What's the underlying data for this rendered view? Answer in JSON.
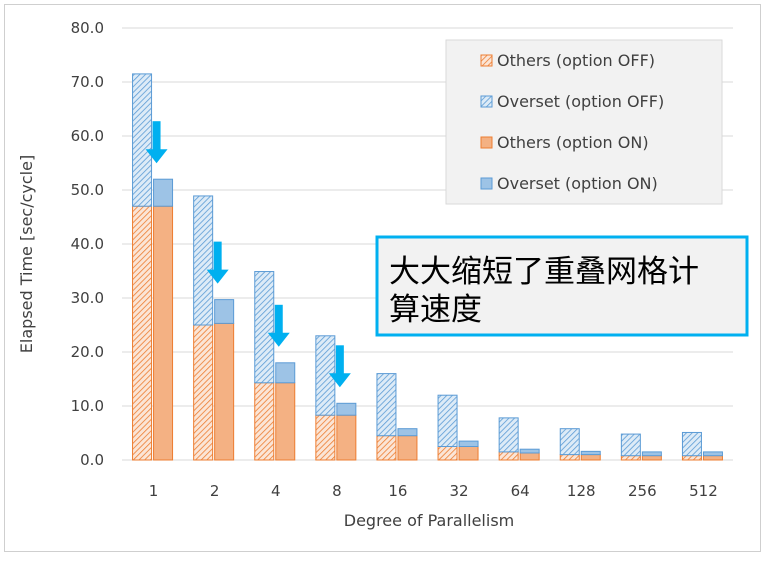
{
  "chart_data": {
    "type": "bar",
    "ylabel": "Elapsed Time [sec/cycle]",
    "xlabel": "Degree of Parallelism",
    "ylim": [
      0,
      80
    ],
    "yticks": [
      "0.0",
      "10.0",
      "20.0",
      "30.0",
      "40.0",
      "50.0",
      "60.0",
      "70.0",
      "80.0"
    ],
    "grid": true,
    "legend_position": "top-right",
    "categories": [
      "1",
      "2",
      "4",
      "8",
      "16",
      "32",
      "64",
      "128",
      "256",
      "512"
    ],
    "series": [
      {
        "name": "Others (option OFF)",
        "group": "option OFF",
        "values": [
          47,
          25,
          14.3,
          8.3,
          4.5,
          2.5,
          1.5,
          1.0,
          0.8,
          0.8
        ]
      },
      {
        "name": "Overset (option OFF)",
        "group": "option OFF",
        "values": [
          24.5,
          23.9,
          20.6,
          14.7,
          11.5,
          9.5,
          6.3,
          4.8,
          4.0,
          4.3
        ]
      },
      {
        "name": "Others (option ON)",
        "group": "option ON",
        "values": [
          47,
          25.3,
          14.3,
          8.3,
          4.5,
          2.5,
          1.3,
          1.0,
          0.8,
          0.8
        ]
      },
      {
        "name": "Overset (option ON)",
        "group": "option ON",
        "values": [
          5.0,
          4.4,
          3.7,
          2.2,
          1.3,
          1.0,
          0.7,
          0.6,
          0.7,
          0.7
        ]
      }
    ],
    "colors": {
      "others": "#f4b183",
      "others_edge": "#ed7d31",
      "overset": "#9dc3e6",
      "overset_edge": "#5b9bd5",
      "arrow": "#00b0f0",
      "grid": "#d9d9d9",
      "annotation_border": "#00b0f0"
    },
    "arrows_at": [
      "1",
      "2",
      "4",
      "8"
    ],
    "annotation": {
      "line1": "大大缩短了重叠网格计",
      "line2": "算速度"
    }
  }
}
